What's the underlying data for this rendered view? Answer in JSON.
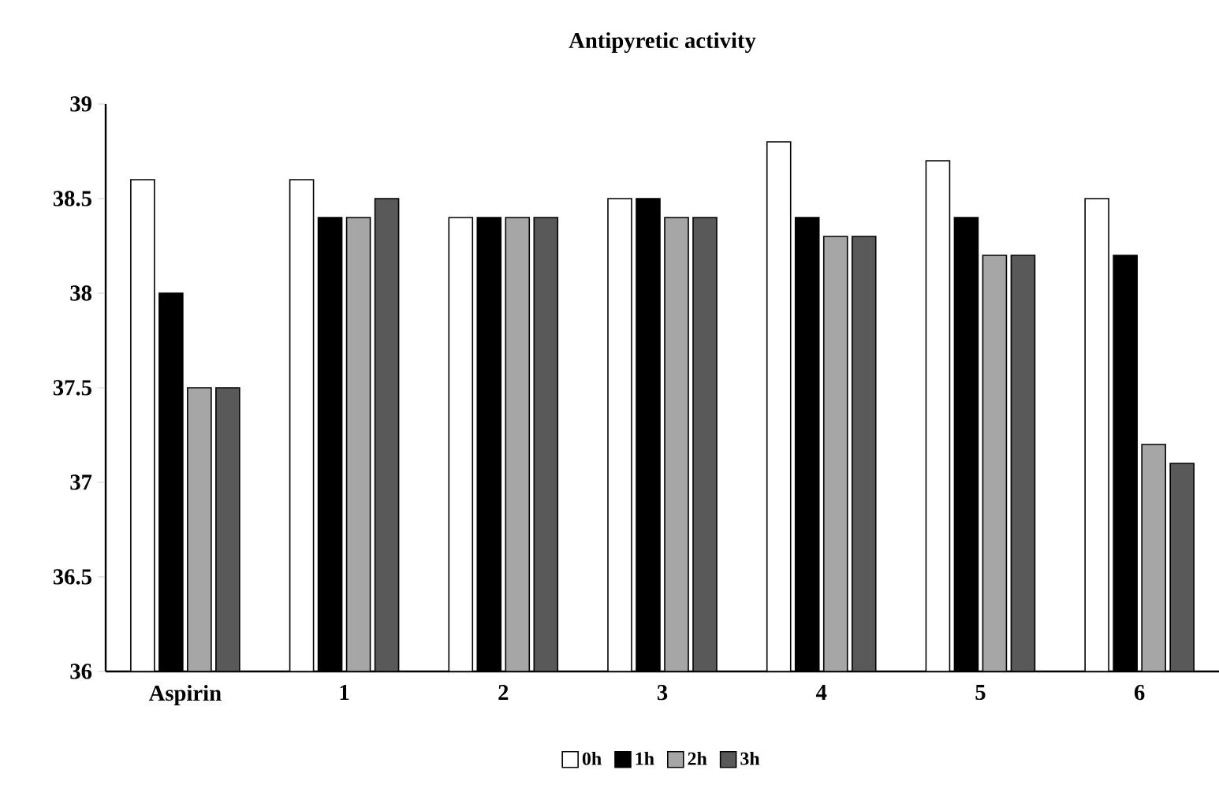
{
  "chart_data": {
    "type": "bar",
    "title": "Antipyretic activity",
    "categories": [
      "Aspirin",
      "1",
      "2",
      "3",
      "4",
      "5",
      "6"
    ],
    "series": [
      {
        "name": "0h",
        "color": "#ffffff",
        "values": [
          38.6,
          38.6,
          38.4,
          38.5,
          38.8,
          38.7,
          38.5
        ]
      },
      {
        "name": "1h",
        "color": "#000000",
        "values": [
          38.0,
          38.4,
          38.4,
          38.5,
          38.4,
          38.4,
          38.2
        ]
      },
      {
        "name": "2h",
        "color": "#a6a6a6",
        "values": [
          37.5,
          38.4,
          38.4,
          38.4,
          38.3,
          38.2,
          37.2
        ]
      },
      {
        "name": "3h",
        "color": "#595959",
        "values": [
          37.5,
          38.5,
          38.4,
          38.4,
          38.3,
          38.2,
          37.1
        ]
      }
    ],
    "ylim": [
      36,
      39
    ],
    "yticks": [
      36,
      36.5,
      37,
      37.5,
      38,
      38.5,
      39
    ],
    "grid": false,
    "legend": "bottom"
  }
}
